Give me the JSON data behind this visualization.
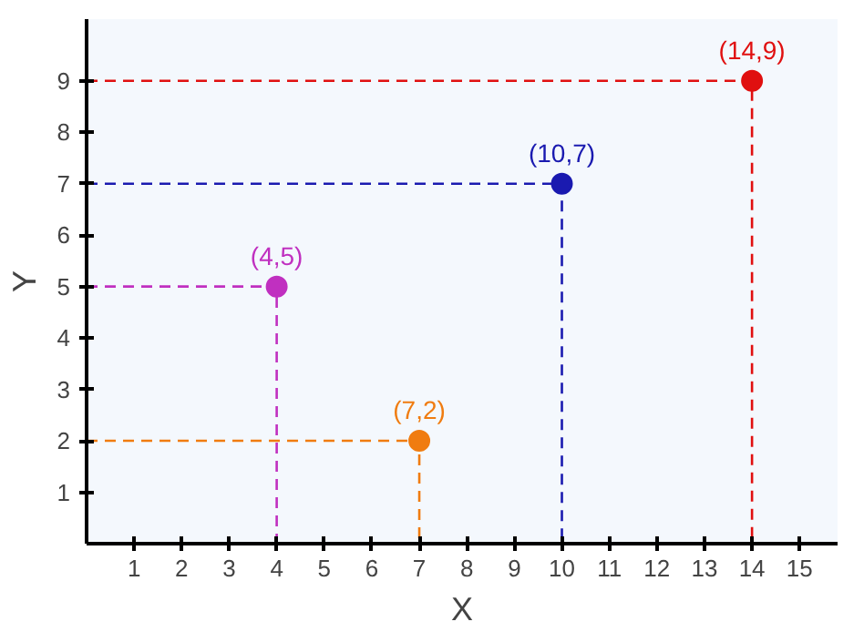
{
  "chart_data": {
    "type": "scatter",
    "xlabel": "X",
    "ylabel": "Y",
    "xlim": [
      0,
      15.8
    ],
    "ylim": [
      0,
      10.2
    ],
    "xticks": [
      1,
      2,
      3,
      4,
      5,
      6,
      7,
      8,
      9,
      10,
      11,
      12,
      13,
      14,
      15
    ],
    "yticks": [
      1,
      2,
      3,
      4,
      5,
      6,
      7,
      8,
      9
    ],
    "grid": false,
    "series": [
      {
        "type": "line",
        "x": [
          0,
          4,
          4
        ],
        "values": [
          5,
          5,
          0
        ],
        "color": "#c030c0",
        "line_style": "dashed"
      },
      {
        "type": "line",
        "x": [
          0,
          7,
          7
        ],
        "values": [
          2,
          2,
          0
        ],
        "color": "#f07c10",
        "line_style": "dashed"
      },
      {
        "type": "line",
        "x": [
          0,
          10,
          10
        ],
        "values": [
          7,
          7,
          0
        ],
        "color": "#1a1ab0",
        "line_style": "dashed"
      },
      {
        "type": "line",
        "x": [
          0,
          14,
          14
        ],
        "values": [
          9,
          9,
          0
        ],
        "color": "#e01010",
        "line_style": "dashed"
      },
      {
        "marker": "circle",
        "x": [
          4,
          7,
          10,
          14
        ],
        "values": [
          5,
          2,
          7,
          9
        ],
        "colors": [
          "#c030c0",
          "#f07c10",
          "#1a1ab0",
          "#e01010"
        ]
      }
    ],
    "annotations": [
      {
        "text": "(4,5)",
        "x": 4,
        "y": 5
      },
      {
        "text": "(7,2)",
        "x": 7,
        "y": 2
      },
      {
        "text": "(10,7)",
        "x": 10,
        "y": 7
      },
      {
        "text": "(14,9)",
        "x": 14,
        "y": 9
      }
    ]
  }
}
